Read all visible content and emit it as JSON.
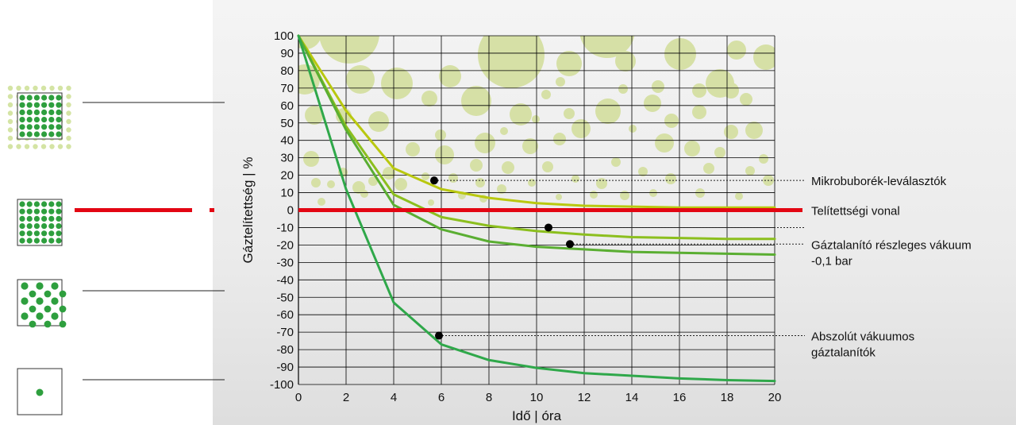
{
  "chart_data": {
    "type": "line",
    "xlabel": "Idő | óra",
    "ylabel": "Gáztelítettség | %",
    "xlim": [
      0,
      20
    ],
    "ylim": [
      -100,
      100
    ],
    "x_ticks": [
      0,
      2,
      4,
      6,
      8,
      10,
      12,
      14,
      16,
      18,
      20
    ],
    "y_ticks": [
      100,
      90,
      80,
      70,
      60,
      50,
      40,
      30,
      20,
      10,
      0,
      -10,
      -20,
      -30,
      -40,
      -50,
      -60,
      -70,
      -80,
      -90,
      -100
    ],
    "grid": true,
    "x": [
      0,
      2,
      4,
      6,
      8,
      10,
      12,
      14,
      16,
      18,
      20
    ],
    "series": [
      {
        "values": [
          100,
          57,
          24,
          12,
          7,
          4,
          2.5,
          2,
          1.5,
          1.5,
          1.5
        ],
        "color": "#b9c80f"
      },
      {
        "values": [
          100,
          48,
          9,
          -4,
          -9,
          -12,
          -14,
          -15.5,
          -16,
          -16.5,
          -16.5
        ],
        "color": "#8cbf1e"
      },
      {
        "values": [
          100,
          46,
          3,
          -11,
          -18,
          -21,
          -22.5,
          -24,
          -24.5,
          -25,
          -25.5
        ],
        "color": "#5aae32"
      },
      {
        "values": [
          100,
          12,
          -53,
          -77,
          -86,
          -90.5,
          -93.5,
          -95,
          -96.5,
          -97.5,
          -98
        ],
        "color": "#2fa84a"
      }
    ],
    "saturation_line": {
      "y": 0,
      "color": "#e30613"
    },
    "markers": [
      {
        "x": 5.7,
        "y": 17
      },
      {
        "x": 10.5,
        "y": -10
      },
      {
        "x": 11.4,
        "y": -19.5
      },
      {
        "x": 5.9,
        "y": -72
      }
    ],
    "annotations": [
      {
        "lines": [
          "Mikrobuborék-leválasztók"
        ],
        "y": 17
      },
      {
        "lines": [
          "Telítettségi vonal"
        ],
        "y": 0
      },
      {
        "lines": [
          "Gáztalanító részleges vákuum",
          "-0,1 bar"
        ],
        "y": -19.5
      },
      {
        "lines": [
          "Abszolút vákuumos",
          "gáztalanítók"
        ],
        "y": -72
      }
    ]
  },
  "colors": {
    "bubble": "#d6e0a6",
    "grid": "#000000",
    "dot_dark": "#2e9f3e",
    "dot_light": "#d4e4a4"
  },
  "legend_icons": [
    {
      "name": "oversaturated-icon"
    },
    {
      "name": "saturated-icon"
    },
    {
      "name": "undersaturated-icon"
    },
    {
      "name": "degassed-icon"
    }
  ]
}
